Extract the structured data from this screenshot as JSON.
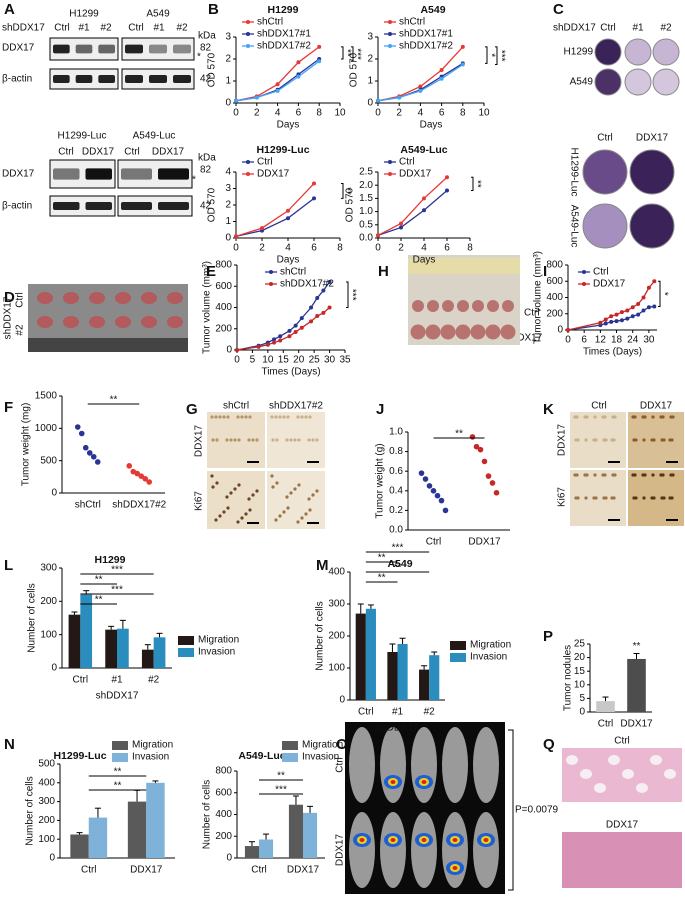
{
  "panels": [
    "A",
    "B",
    "C",
    "D",
    "E",
    "F",
    "G",
    "H",
    "I",
    "J",
    "K",
    "L",
    "M",
    "N",
    "O",
    "P",
    "Q"
  ],
  "labels": [
    "H1299",
    "A549",
    "shDDX17",
    "Ctrl",
    "#1",
    "#2",
    "Ctrl",
    "#1",
    "#2",
    "kDa",
    "DDX17",
    "82",
    "*",
    "β-actin",
    "42",
    "H1299-Luc",
    "A549-Luc",
    "Ctrl",
    "DDX17",
    "Ctrl",
    "DDX17",
    "kDa",
    "DDX17",
    "82",
    "*",
    "β-actin",
    "42",
    "shDDX17",
    "Ctrl",
    "#1",
    "#2",
    "H1299",
    "A549",
    "Ctrl",
    "DDX17",
    "H1299-Luc",
    "A549-Luc",
    "shDDX17",
    "Ctrl",
    "#2",
    "Ctrl",
    "DDX17",
    "shCtrl",
    "shDDX17#2",
    "DDX17",
    "Ki67",
    "Ctrl",
    "DDX17",
    "DDX17",
    "Ki67",
    "Ctrl",
    "DDX17",
    "P=0.0079",
    "Ctrl",
    "DDX17"
  ],
  "chart_data": [
    {
      "type": "line",
      "title": "H1299",
      "x": [
        0,
        2,
        4,
        6,
        8
      ],
      "xlim": [
        0,
        10
      ],
      "xticks": [
        0,
        2,
        4,
        6,
        8,
        10
      ],
      "ylim": [
        0,
        3
      ],
      "yticks": [
        0,
        1,
        2,
        3
      ],
      "xlabel": "Days",
      "ylabel": "OD 570",
      "series": [
        {
          "name": "shCtrl",
          "color": "#e53935",
          "values": [
            0.1,
            0.3,
            0.85,
            1.85,
            2.55
          ]
        },
        {
          "name": "shDDX17#1",
          "color": "#283593",
          "values": [
            0.1,
            0.25,
            0.6,
            1.3,
            2.0
          ]
        },
        {
          "name": "shDDX17#2",
          "color": "#42a5f5",
          "values": [
            0.1,
            0.25,
            0.55,
            1.2,
            1.9
          ]
        }
      ],
      "annotations": [
        "**",
        "***"
      ]
    },
    {
      "type": "line",
      "title": "A549",
      "x": [
        0,
        2,
        4,
        6,
        8
      ],
      "xlim": [
        0,
        10
      ],
      "xticks": [
        0,
        2,
        4,
        6,
        8,
        10
      ],
      "ylim": [
        0,
        3
      ],
      "yticks": [
        0,
        1,
        2,
        3
      ],
      "xlabel": "Days",
      "ylabel": "OD 570",
      "series": [
        {
          "name": "shCtrl",
          "color": "#e53935",
          "values": [
            0.1,
            0.3,
            0.75,
            1.5,
            2.55
          ]
        },
        {
          "name": "shDDX17#1",
          "color": "#283593",
          "values": [
            0.1,
            0.25,
            0.6,
            1.2,
            1.8
          ]
        },
        {
          "name": "shDDX17#2",
          "color": "#42a5f5",
          "values": [
            0.1,
            0.25,
            0.55,
            1.1,
            1.75
          ]
        }
      ],
      "annotations": [
        "*",
        "***"
      ]
    },
    {
      "type": "line",
      "title": "H1299-Luc",
      "x": [
        0,
        2,
        4,
        6
      ],
      "xlim": [
        0,
        8
      ],
      "xticks": [
        0,
        2,
        4,
        6,
        8
      ],
      "ylim": [
        0,
        4
      ],
      "yticks": [
        0,
        1,
        2,
        3,
        4
      ],
      "xlabel": "Days",
      "ylabel": "OD 570",
      "series": [
        {
          "name": "Ctrl",
          "color": "#283593",
          "values": [
            0.1,
            0.45,
            1.2,
            2.4
          ]
        },
        {
          "name": "DDX17",
          "color": "#e53935",
          "values": [
            0.1,
            0.6,
            1.65,
            3.3
          ]
        }
      ],
      "annotations": [
        "**"
      ]
    },
    {
      "type": "line",
      "title": "A549-Luc",
      "x": [
        0,
        2,
        4,
        6
      ],
      "xlim": [
        0,
        8
      ],
      "xticks": [
        0,
        2,
        4,
        6,
        8
      ],
      "ylim": [
        0,
        2.5
      ],
      "yticks": [
        {
          "value": 0,
          "label": "0.0"
        },
        0.5,
        {
          "value": 1,
          "label": "1.0"
        },
        1.5,
        {
          "value": 2,
          "label": "2.0"
        },
        2.5
      ],
      "xlabel": "Days",
      "ylabel": "OD 570",
      "series": [
        {
          "name": "Ctrl",
          "color": "#283593",
          "values": [
            0.1,
            0.4,
            1.05,
            1.8
          ]
        },
        {
          "name": "DDX17",
          "color": "#e53935",
          "values": [
            0.1,
            0.55,
            1.5,
            2.3
          ]
        }
      ],
      "annotations": [
        "**"
      ]
    },
    {
      "type": "line",
      "x": [
        0,
        7,
        10,
        12,
        14,
        17,
        19,
        21,
        24,
        26,
        28,
        30
      ],
      "xlim": [
        0,
        35
      ],
      "xticks": [
        0,
        5,
        10,
        15,
        20,
        25,
        30,
        35
      ],
      "ylim": [
        0,
        800
      ],
      "yticks": [
        0,
        200,
        400,
        600,
        800
      ],
      "xlabel": "Times (Days)",
      "ylabel": "Tumor volume (mm³)",
      "series": [
        {
          "name": "shCtrl",
          "color": "#283593",
          "values": [
            0,
            40,
            70,
            100,
            130,
            180,
            230,
            300,
            400,
            490,
            560,
            640
          ]
        },
        {
          "name": "shDDX17#2",
          "color": "#c62828",
          "values": [
            0,
            30,
            50,
            70,
            90,
            130,
            170,
            210,
            270,
            320,
            350,
            400
          ]
        }
      ],
      "annotations": [
        "***"
      ]
    },
    {
      "type": "line",
      "x": [
        0,
        12,
        14,
        16,
        18,
        20,
        22,
        24,
        26,
        28,
        30,
        32
      ],
      "xlim": [
        0,
        33
      ],
      "xticks": [
        0,
        6,
        12,
        18,
        24,
        30
      ],
      "ylim": [
        0,
        800
      ],
      "yticks": [
        0,
        200,
        400,
        600,
        800
      ],
      "xlabel": "Times (Days)",
      "ylabel": "Tumor volume (mm³)",
      "series": [
        {
          "name": "Ctrl",
          "color": "#283593",
          "values": [
            0,
            60,
            80,
            100,
            110,
            120,
            140,
            170,
            190,
            240,
            280,
            290
          ]
        },
        {
          "name": "DDX17",
          "color": "#c62828",
          "values": [
            0,
            90,
            130,
            170,
            190,
            220,
            240,
            280,
            320,
            400,
            520,
            600
          ]
        }
      ],
      "annotations": [
        "*"
      ]
    },
    {
      "type": "dot",
      "categories": [
        "shCtrl",
        "shDDX17#2"
      ],
      "values": [
        [
          1020,
          920,
          700,
          620,
          560,
          480
        ],
        [
          420,
          330,
          300,
          260,
          220,
          170
        ]
      ],
      "colors": [
        "#283593",
        "#e53935"
      ],
      "ylim": [
        0,
        1500
      ],
      "yticks": [
        0,
        500,
        1000,
        1500
      ],
      "ylabel": "Tumor weight (mg)",
      "annotations": [
        "**"
      ]
    },
    {
      "type": "dot",
      "categories": [
        "Ctrl",
        "DDX17"
      ],
      "values": [
        [
          0.58,
          0.52,
          0.45,
          0.4,
          0.35,
          0.3,
          0.2
        ],
        [
          0.95,
          0.85,
          0.82,
          0.7,
          0.55,
          0.48,
          0.38
        ]
      ],
      "colors": [
        "#283593",
        "#c62828"
      ],
      "ylim": [
        0,
        1
      ],
      "yticks": [
        {
          "value": 0,
          "label": "0.0"
        },
        0.2,
        0.4,
        0.6,
        0.8,
        {
          "value": 1,
          "label": "1.0"
        }
      ],
      "ylabel": "Tumor weight (g)",
      "annotations": [
        "**"
      ]
    },
    {
      "type": "bar",
      "title": "H1299",
      "categories": [
        "Ctrl",
        "#1",
        "#2"
      ],
      "xlabel": "shDDX17",
      "ylabel": "Number of cells",
      "ylim": [
        0,
        300
      ],
      "yticks": [
        0,
        100,
        200,
        300
      ],
      "series": [
        {
          "name": "Migration",
          "color": "#231815",
          "values": [
            160,
            115,
            55
          ],
          "errors": [
            8,
            10,
            15
          ]
        },
        {
          "name": "Invasion",
          "color": "#2b8cbe",
          "values": [
            220,
            118,
            92
          ],
          "errors": [
            12,
            25,
            12
          ]
        }
      ],
      "annotations": [
        "***",
        "**",
        "***",
        "**"
      ]
    },
    {
      "type": "bar",
      "title": "A549",
      "categories": [
        "Ctrl",
        "#1",
        "#2"
      ],
      "xlabel": "shDDX17",
      "ylabel": "Number of cells",
      "ylim": [
        0,
        400
      ],
      "yticks": [
        0,
        100,
        200,
        300,
        400
      ],
      "series": [
        {
          "name": "Migration",
          "color": "#231815",
          "values": [
            270,
            150,
            95
          ],
          "errors": [
            30,
            25,
            12
          ]
        },
        {
          "name": "Invasion",
          "color": "#2b8cbe",
          "values": [
            285,
            175,
            140
          ],
          "errors": [
            12,
            18,
            10
          ]
        }
      ],
      "annotations": [
        "***",
        "**",
        "**",
        "**"
      ]
    },
    {
      "type": "bar",
      "categories": [
        "Ctrl",
        "DDX17"
      ],
      "values": [
        4,
        19.5
      ],
      "errors": [
        1.5,
        2
      ],
      "colors": [
        "#c8c8c8",
        "#4d4d4d"
      ],
      "ylim": [
        0,
        25
      ],
      "yticks": [
        0,
        5,
        10,
        15,
        20,
        25
      ],
      "ylabel": "Tumor nodules",
      "annotations": [
        "**"
      ]
    },
    {
      "type": "bar",
      "title": "H1299-Luc",
      "categories": [
        "Ctrl",
        "DDX17"
      ],
      "ylabel": "Number of cells",
      "ylim": [
        0,
        500
      ],
      "yticks": [
        0,
        100,
        200,
        300,
        400,
        500
      ],
      "series": [
        {
          "name": "Migration",
          "color": "#5a5a5a",
          "values": [
            125,
            300
          ],
          "errors": [
            10,
            60
          ]
        },
        {
          "name": "Invasion",
          "color": "#7fb2d9",
          "values": [
            215,
            400
          ],
          "errors": [
            50,
            10
          ]
        }
      ],
      "annotations": [
        "**",
        "**"
      ]
    },
    {
      "type": "bar",
      "title": "A549-Luc",
      "categories": [
        "Ctrl",
        "DDX17"
      ],
      "ylabel": "Number of cells",
      "ylim": [
        0,
        800
      ],
      "yticks": [
        0,
        200,
        400,
        600,
        800
      ],
      "series": [
        {
          "name": "Migration",
          "color": "#5a5a5a",
          "values": [
            110,
            490
          ],
          "errors": [
            40,
            80
          ]
        },
        {
          "name": "Invasion",
          "color": "#7fb2d9",
          "values": [
            170,
            415
          ],
          "errors": [
            50,
            60
          ]
        }
      ],
      "annotations": [
        "**",
        "***"
      ]
    }
  ]
}
